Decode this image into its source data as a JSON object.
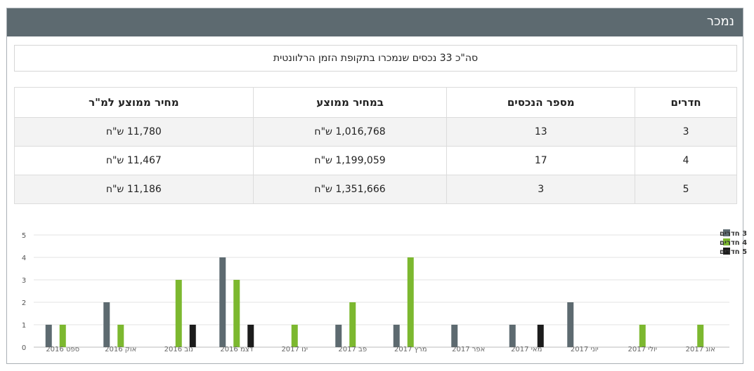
{
  "panel": {
    "title": "נמכר"
  },
  "summary": "סה\"כ 33 נכסים שנמכרו בתקופת הזמן הרלוונטית",
  "table": {
    "headers": [
      "חדרים",
      "מספר הנכסים",
      "במחיר ממוצע",
      "מחיר ממוצע למ\"ר"
    ],
    "rows": [
      [
        "3",
        "13",
        "1,016,768 ש\"ח",
        "11,780 ש\"ח"
      ],
      [
        "4",
        "17",
        "1,199,059 ש\"ח",
        "11,467 ש\"ח"
      ],
      [
        "5",
        "3",
        "1,351,666 ש\"ח",
        "11,186 ש\"ח"
      ]
    ]
  },
  "chart_data": {
    "type": "bar",
    "categories": [
      "ספט 2016",
      "אוק 2016",
      "נוב 2016",
      "דצמ 2016",
      "ינו 2017",
      "פב 2017",
      "מרץ 2017",
      "אפר 2017",
      "מאי 2017",
      "יוני 2017",
      "יולי 2017",
      "אוג 2017"
    ],
    "series": [
      {
        "name": "3 חדרים",
        "color": "#5d6a70",
        "values": [
          1,
          2,
          0,
          4,
          0,
          1,
          1,
          1,
          1,
          2,
          0,
          0
        ]
      },
      {
        "name": "4 חדרים",
        "color": "#7cb82f",
        "values": [
          1,
          1,
          3,
          3,
          1,
          2,
          4,
          0,
          0,
          0,
          1,
          1
        ]
      },
      {
        "name": "5 חדרים",
        "color": "#1c1c1c",
        "values": [
          0,
          0,
          1,
          1,
          0,
          0,
          0,
          0,
          1,
          0,
          0,
          0
        ]
      }
    ],
    "ylim": [
      0,
      5
    ],
    "yticks": [
      0,
      1,
      2,
      3,
      4,
      5
    ],
    "grid": true,
    "legend": "top-right"
  }
}
